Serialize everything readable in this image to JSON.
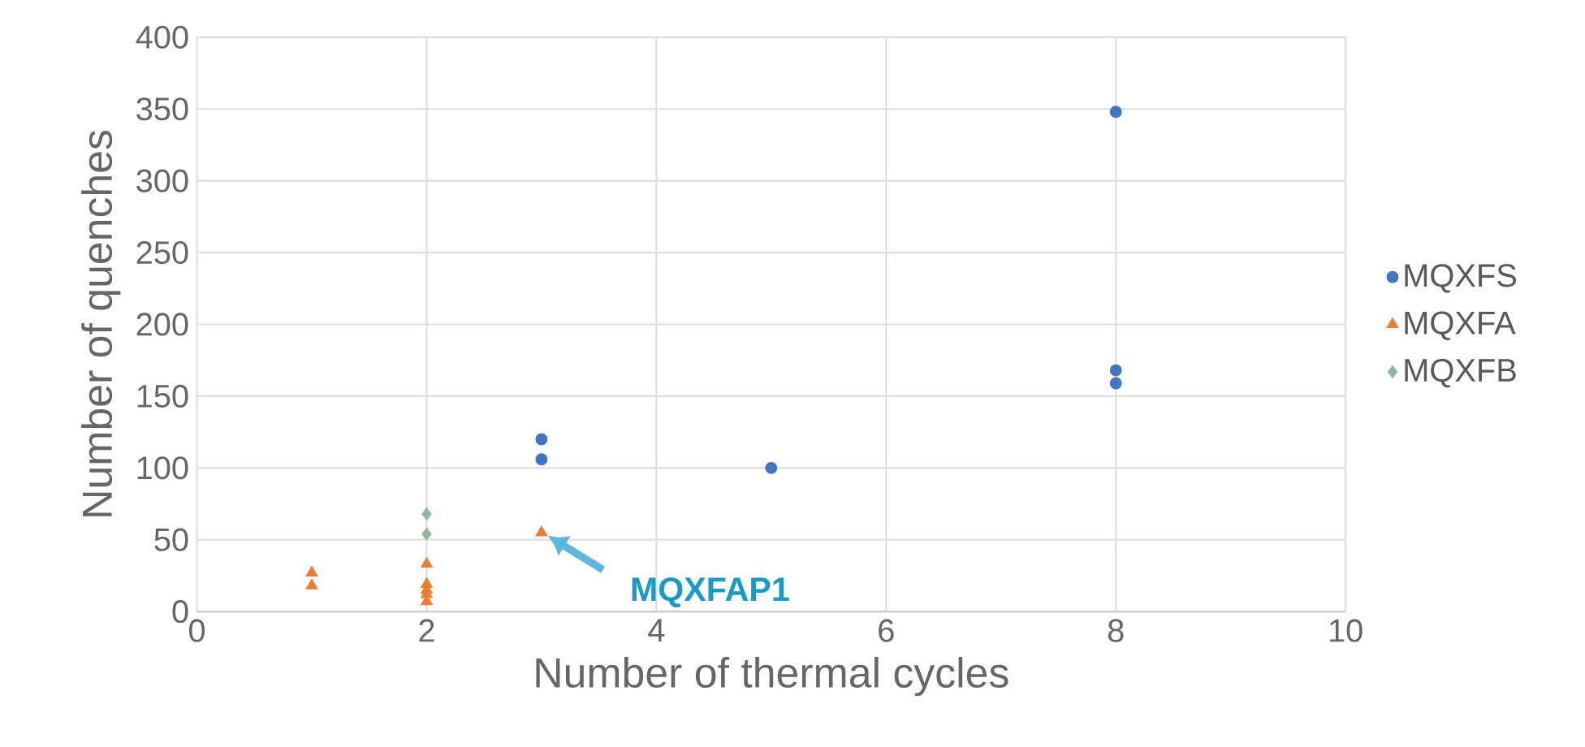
{
  "chart_data": {
    "type": "scatter",
    "xlabel": "Number of thermal cycles",
    "ylabel": "Number of quenches",
    "xlim": [
      0,
      10
    ],
    "xticks": [
      0,
      2,
      4,
      6,
      8,
      10
    ],
    "ylim": [
      0,
      400
    ],
    "yticks": [
      0,
      50,
      100,
      150,
      200,
      250,
      300,
      350,
      400
    ],
    "grid": true,
    "legend": "right",
    "series": [
      {
        "name": "MQXFS",
        "color": "#4472c4",
        "marker": "circle",
        "x": [
          3,
          3,
          5,
          8,
          8,
          8
        ],
        "values": [
          120,
          106,
          100,
          348,
          168,
          159
        ]
      },
      {
        "name": "MQXFA",
        "color": "#ed7d31",
        "marker": "triangle",
        "x": [
          1,
          1,
          2,
          2,
          2,
          2,
          2,
          3
        ],
        "values": [
          27,
          18,
          33,
          19,
          15,
          12,
          7,
          55
        ]
      },
      {
        "name": "MQXFB",
        "color": "#8fb996",
        "marker": "diamond",
        "x": [
          2,
          2
        ],
        "values": [
          68,
          54
        ]
      }
    ],
    "annotations": [
      "MQXFAP1"
    ]
  }
}
